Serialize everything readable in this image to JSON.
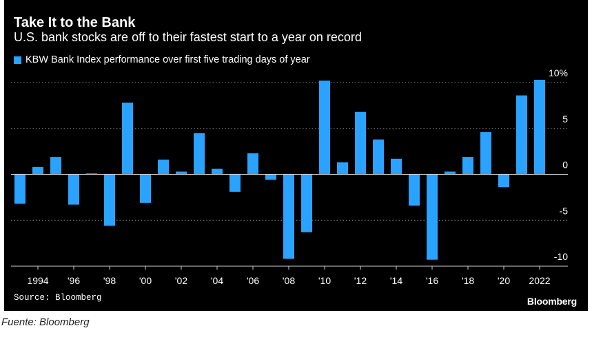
{
  "chart": {
    "title": "Take It to the Bank",
    "subtitle": "U.S. bank stocks are off to their fastest start to a year on record",
    "legend_label": "KBW Bank Index performance over first five trading days of year",
    "source": "Source: Bloomberg",
    "brand": "Bloomberg"
  },
  "caption": "Fuente: Bloomberg",
  "colors": {
    "background": "#000000",
    "bar": "#29a3ff",
    "text": "#ffffff",
    "grid": "#8a8a8a",
    "axis": "#cfcfcf"
  },
  "chart_data": {
    "type": "bar",
    "categories": [
      1993,
      1994,
      1995,
      1996,
      1997,
      1998,
      1999,
      2000,
      2001,
      2002,
      2003,
      2004,
      2005,
      2006,
      2007,
      2008,
      2009,
      2010,
      2011,
      2012,
      2013,
      2014,
      2015,
      2016,
      2017,
      2018,
      2019,
      2020,
      2021,
      2022
    ],
    "x_tick_labels": [
      "1994",
      "'96",
      "'98",
      "'00",
      "'02",
      "'04",
      "'06",
      "'08",
      "'10",
      "'12",
      "'14",
      "'16",
      "'18",
      "'20",
      "2022"
    ],
    "x_tick_years": [
      1994,
      1996,
      1998,
      2000,
      2002,
      2004,
      2006,
      2008,
      2010,
      2012,
      2014,
      2016,
      2018,
      2020,
      2022
    ],
    "values": [
      -3.2,
      0.8,
      1.9,
      -3.3,
      0.1,
      -5.6,
      7.8,
      -3.1,
      1.6,
      0.3,
      4.5,
      0.6,
      -1.9,
      2.3,
      -0.6,
      -9.2,
      -6.3,
      10.2,
      1.3,
      6.8,
      3.8,
      1.7,
      -3.4,
      -9.3,
      0.3,
      1.9,
      4.6,
      -1.4,
      8.6,
      10.3
    ],
    "ylim": [
      -10,
      10
    ],
    "y_ticks": [
      {
        "value": 10,
        "label": "10%"
      },
      {
        "value": 5,
        "label": "5"
      },
      {
        "value": 0,
        "label": "0"
      },
      {
        "value": -5,
        "label": "-5"
      },
      {
        "value": -10,
        "label": "-10"
      }
    ],
    "grid": true,
    "legend_position": "top-left",
    "xlabel": "",
    "ylabel": ""
  }
}
